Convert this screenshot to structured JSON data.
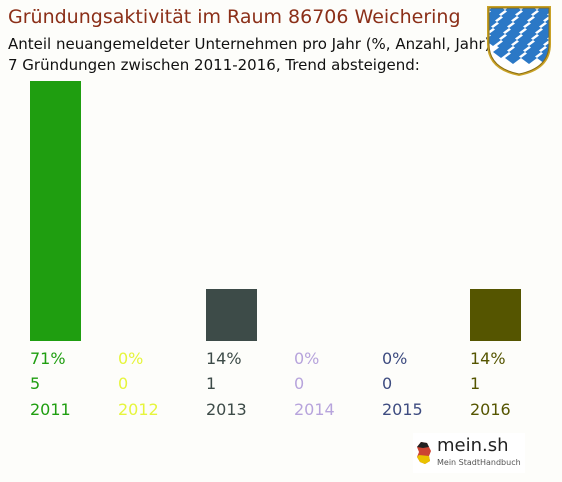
{
  "title": "Gründungsaktivität im Raum 86706 Weichering",
  "subtitle_line1": "Anteil neuangemeldeter Unternehmen pro Jahr (%, Anzahl, Jahr)",
  "subtitle_line2": "7 Gründungen zwischen 2011-2016, Trend absteigend:",
  "chart_data": {
    "type": "bar",
    "categories": [
      "2011",
      "2012",
      "2013",
      "2014",
      "2015",
      "2016"
    ],
    "percent_labels": [
      "71%",
      "0%",
      "14%",
      "0%",
      "0%",
      "14%"
    ],
    "values": [
      5,
      0,
      1,
      0,
      0,
      1
    ],
    "colors": [
      "#1f9e10",
      "#e6f53c",
      "#3d4b48",
      "#b7a4dc",
      "#3e4c80",
      "#555500"
    ],
    "ylim": [
      0,
      5
    ],
    "grid": false
  },
  "logo": {
    "brand": "mein.sh",
    "tagline": "Mein StadtHandbuch"
  },
  "emblem": "bavaria-lozenge-shield"
}
